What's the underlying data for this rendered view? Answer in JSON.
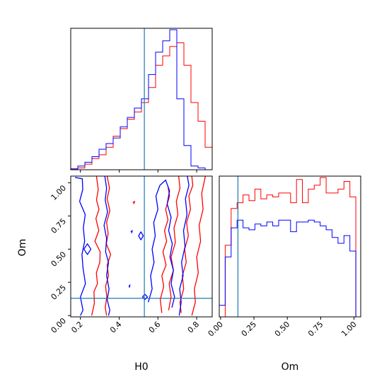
{
  "chart_data": {
    "type": "corner",
    "parameters": [
      "H0",
      "Om"
    ],
    "truths": {
      "H0": 0.53,
      "Om": 0.13
    },
    "colors": {
      "series_a": "#ff0000",
      "series_b": "#0000ff",
      "truth": "#1f77b4"
    },
    "axes": {
      "H0": {
        "label": "H0",
        "range": [
          0.15,
          0.88
        ],
        "ticks": [
          0.2,
          0.4,
          0.6,
          0.8
        ],
        "tick_labels": [
          "0.2",
          "0.4",
          "0.6",
          "0.8"
        ]
      },
      "Om": {
        "label": "Om",
        "range": [
          -0.01,
          1.05
        ],
        "ticks": [
          0.0,
          0.25,
          0.5,
          0.75,
          1.0
        ],
        "tick_labels": [
          "0.00",
          "0.25",
          "0.50",
          "0.75",
          "1.00"
        ]
      }
    },
    "hist_H0": {
      "bin_edges": [
        0.15,
        0.1865,
        0.223,
        0.2595,
        0.296,
        0.3325,
        0.369,
        0.4055,
        0.442,
        0.4785,
        0.515,
        0.5515,
        0.588,
        0.6245,
        0.661,
        0.6975,
        0.734,
        0.7705,
        0.807,
        0.8435,
        0.88
      ],
      "series": [
        {
          "color": "red",
          "counts": [
            0.5,
            1,
            3,
            6,
            8,
            12,
            18,
            22,
            27,
            31,
            36,
            44,
            56,
            61,
            66,
            68,
            56,
            36,
            26,
            12
          ]
        },
        {
          "color": "blue",
          "counts": [
            0.5,
            2,
            4,
            7,
            11,
            14,
            17,
            23,
            28,
            33,
            38,
            51,
            63,
            69,
            75,
            38,
            13,
            2,
            1,
            0
          ]
        }
      ],
      "ylim": [
        0,
        75
      ]
    },
    "hist_Om": {
      "bin_edges": [
        -0.01,
        0.0345,
        0.079,
        0.1235,
        0.168,
        0.2125,
        0.257,
        0.3015,
        0.346,
        0.3905,
        0.435,
        0.4795,
        0.524,
        0.5685,
        0.613,
        0.6575,
        0.702,
        0.7465,
        0.791,
        0.8355,
        0.88,
        0.9245,
        0.969,
        1.0135,
        1.05
      ],
      "series": [
        {
          "color": "red",
          "counts": [
            0,
            37,
            56,
            59,
            63,
            60,
            66,
            61,
            63,
            62,
            64,
            64,
            59,
            71,
            59,
            66,
            68,
            72,
            64,
            64,
            66,
            70,
            62,
            0,
            0
          ]
        },
        {
          "color": "blue",
          "counts": [
            6,
            31,
            46,
            50,
            46,
            45,
            48,
            47,
            49,
            47,
            50,
            50,
            44,
            49,
            49,
            50,
            49,
            47,
            45,
            41,
            38,
            42,
            34,
            0,
            8
          ]
        }
      ],
      "ylim": [
        0,
        72
      ]
    },
    "contours": [
      {
        "color": "red",
        "paths": [
          [
            [
              0.283,
              1.05
            ],
            [
              0.292,
              0.95
            ],
            [
              0.283,
              0.87
            ],
            [
              0.296,
              0.8
            ],
            [
              0.28,
              0.73
            ],
            [
              0.295,
              0.64
            ],
            [
              0.275,
              0.56
            ],
            [
              0.302,
              0.48
            ],
            [
              0.3,
              0.4
            ],
            [
              0.282,
              0.32
            ],
            [
              0.288,
              0.24
            ],
            [
              0.27,
              0.18
            ],
            [
              0.272,
              0.09
            ],
            [
              0.258,
              0.0
            ]
          ],
          [
            [
              0.338,
              1.05
            ],
            [
              0.35,
              0.96
            ],
            [
              0.338,
              0.88
            ],
            [
              0.352,
              0.79
            ],
            [
              0.335,
              0.7
            ],
            [
              0.343,
              0.62
            ],
            [
              0.334,
              0.54
            ],
            [
              0.356,
              0.46
            ],
            [
              0.338,
              0.38
            ],
            [
              0.345,
              0.3
            ],
            [
              0.33,
              0.22
            ],
            [
              0.336,
              0.14
            ],
            [
              0.328,
              0.06
            ],
            [
              0.335,
              0.0
            ]
          ],
          [
            [
              0.62,
              0.02
            ],
            [
              0.612,
              0.12
            ],
            [
              0.63,
              0.22
            ],
            [
              0.62,
              0.3
            ],
            [
              0.642,
              0.38
            ],
            [
              0.626,
              0.48
            ],
            [
              0.645,
              0.56
            ],
            [
              0.634,
              0.64
            ],
            [
              0.652,
              0.72
            ],
            [
              0.64,
              0.8
            ],
            [
              0.66,
              0.9
            ],
            [
              0.652,
              0.97
            ]
          ],
          [
            [
              0.655,
              0.04
            ],
            [
              0.668,
              0.14
            ],
            [
              0.658,
              0.24
            ],
            [
              0.68,
              0.34
            ],
            [
              0.668,
              0.44
            ],
            [
              0.69,
              0.55
            ],
            [
              0.683,
              0.66
            ],
            [
              0.703,
              0.76
            ],
            [
              0.695,
              0.86
            ],
            [
              0.714,
              0.96
            ],
            [
              0.707,
              1.05
            ]
          ],
          [
            [
              0.72,
              0.02
            ],
            [
              0.714,
              0.1
            ],
            [
              0.733,
              0.2
            ],
            [
              0.726,
              0.3
            ],
            [
              0.746,
              0.4
            ],
            [
              0.738,
              0.5
            ],
            [
              0.757,
              0.6
            ],
            [
              0.748,
              0.7
            ],
            [
              0.768,
              0.8
            ],
            [
              0.76,
              0.9
            ],
            [
              0.78,
              0.98
            ],
            [
              0.775,
              1.05
            ]
          ],
          [
            [
              0.775,
              0.0
            ],
            [
              0.793,
              0.1
            ],
            [
              0.788,
              0.2
            ],
            [
              0.808,
              0.32
            ],
            [
              0.8,
              0.44
            ],
            [
              0.82,
              0.56
            ],
            [
              0.813,
              0.68
            ],
            [
              0.833,
              0.8
            ],
            [
              0.826,
              0.92
            ],
            [
              0.845,
              1.05
            ]
          ],
          [
            [
              0.47,
              0.85
            ],
            [
              0.48,
              0.86
            ],
            [
              0.475,
              0.84
            ]
          ]
        ]
      },
      {
        "color": "blue",
        "paths": [
          [
            [
              0.172,
              1.04
            ],
            [
              0.21,
              1.03
            ],
            [
              0.212,
              0.95
            ],
            [
              0.196,
              0.86
            ],
            [
              0.225,
              0.76
            ],
            [
              0.215,
              0.66
            ],
            [
              0.222,
              0.56
            ],
            [
              0.208,
              0.46
            ],
            [
              0.213,
              0.36
            ],
            [
              0.226,
              0.24
            ],
            [
              0.2,
              0.14
            ],
            [
              0.213,
              0.04
            ],
            [
              0.2,
              0.0
            ]
          ],
          [
            [
              0.326,
              1.05
            ],
            [
              0.335,
              0.96
            ],
            [
              0.328,
              0.87
            ],
            [
              0.34,
              0.78
            ],
            [
              0.322,
              0.68
            ],
            [
              0.335,
              0.58
            ],
            [
              0.33,
              0.48
            ],
            [
              0.345,
              0.4
            ],
            [
              0.335,
              0.3
            ],
            [
              0.348,
              0.2
            ],
            [
              0.338,
              0.12
            ],
            [
              0.352,
              0.04
            ],
            [
              0.345,
              0.0
            ]
          ],
          [
            [
              0.55,
              0.1
            ],
            [
              0.57,
              0.2
            ],
            [
              0.562,
              0.3
            ],
            [
              0.58,
              0.4
            ],
            [
              0.57,
              0.5
            ],
            [
              0.586,
              0.6
            ],
            [
              0.578,
              0.7
            ],
            [
              0.6,
              0.8
            ],
            [
              0.59,
              0.9
            ],
            [
              0.61,
              0.98
            ],
            [
              0.64,
              1.02
            ],
            [
              0.66,
              0.94
            ],
            [
              0.648,
              0.84
            ],
            [
              0.668,
              0.74
            ],
            [
              0.655,
              0.64
            ],
            [
              0.674,
              0.54
            ],
            [
              0.662,
              0.44
            ],
            [
              0.68,
              0.34
            ],
            [
              0.668,
              0.24
            ],
            [
              0.686,
              0.14
            ],
            [
              0.672,
              0.06
            ]
          ],
          [
            [
              0.71,
              0.0
            ],
            [
              0.72,
              0.1
            ],
            [
              0.712,
              0.2
            ],
            [
              0.73,
              0.3
            ],
            [
              0.722,
              0.4
            ],
            [
              0.74,
              0.52
            ],
            [
              0.732,
              0.64
            ],
            [
              0.75,
              0.76
            ],
            [
              0.742,
              0.88
            ],
            [
              0.76,
              0.98
            ],
            [
              0.752,
              1.05
            ]
          ],
          [
            [
              0.218,
              0.5
            ],
            [
              0.236,
              0.54
            ],
            [
              0.254,
              0.5
            ],
            [
              0.236,
              0.46
            ],
            [
              0.218,
              0.5
            ]
          ],
          [
            [
              0.46,
              0.63
            ],
            [
              0.468,
              0.64
            ],
            [
              0.464,
              0.62
            ]
          ],
          [
            [
              0.5,
              0.6
            ],
            [
              0.512,
              0.63
            ],
            [
              0.524,
              0.6
            ],
            [
              0.512,
              0.57
            ],
            [
              0.5,
              0.6
            ]
          ],
          [
            [
              0.45,
              0.22
            ],
            [
              0.456,
              0.23
            ],
            [
              0.452,
              0.21
            ]
          ],
          [
            [
              0.52,
              0.14
            ],
            [
              0.533,
              0.16
            ],
            [
              0.546,
              0.14
            ],
            [
              0.533,
              0.12
            ],
            [
              0.52,
              0.14
            ]
          ]
        ]
      }
    ]
  }
}
